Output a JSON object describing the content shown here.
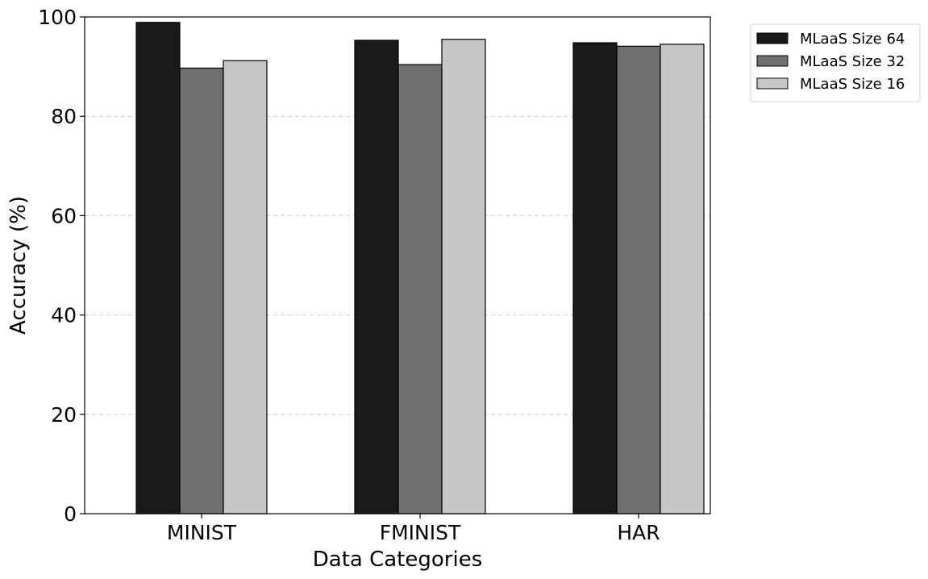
{
  "chart_data": {
    "type": "bar",
    "title": "",
    "xlabel": "Data Categories",
    "ylabel": "Accuracy (%)",
    "categories": [
      "MINIST",
      "FMINIST",
      "HAR"
    ],
    "ylim": [
      0,
      100
    ],
    "yticks": [
      0,
      20,
      40,
      60,
      80,
      100
    ],
    "grid": "y-dashed",
    "legend_position": "outside-top-right",
    "series": [
      {
        "name": "MLaaS Size 64",
        "color": "#1a1a1a",
        "values": [
          98.9,
          95.3,
          94.8
        ]
      },
      {
        "name": "MLaaS Size 32",
        "color": "#707070",
        "values": [
          89.7,
          90.4,
          94.1
        ]
      },
      {
        "name": "MLaaS Size 16",
        "color": "#c6c6c6",
        "values": [
          91.2,
          95.5,
          94.5
        ]
      }
    ]
  }
}
